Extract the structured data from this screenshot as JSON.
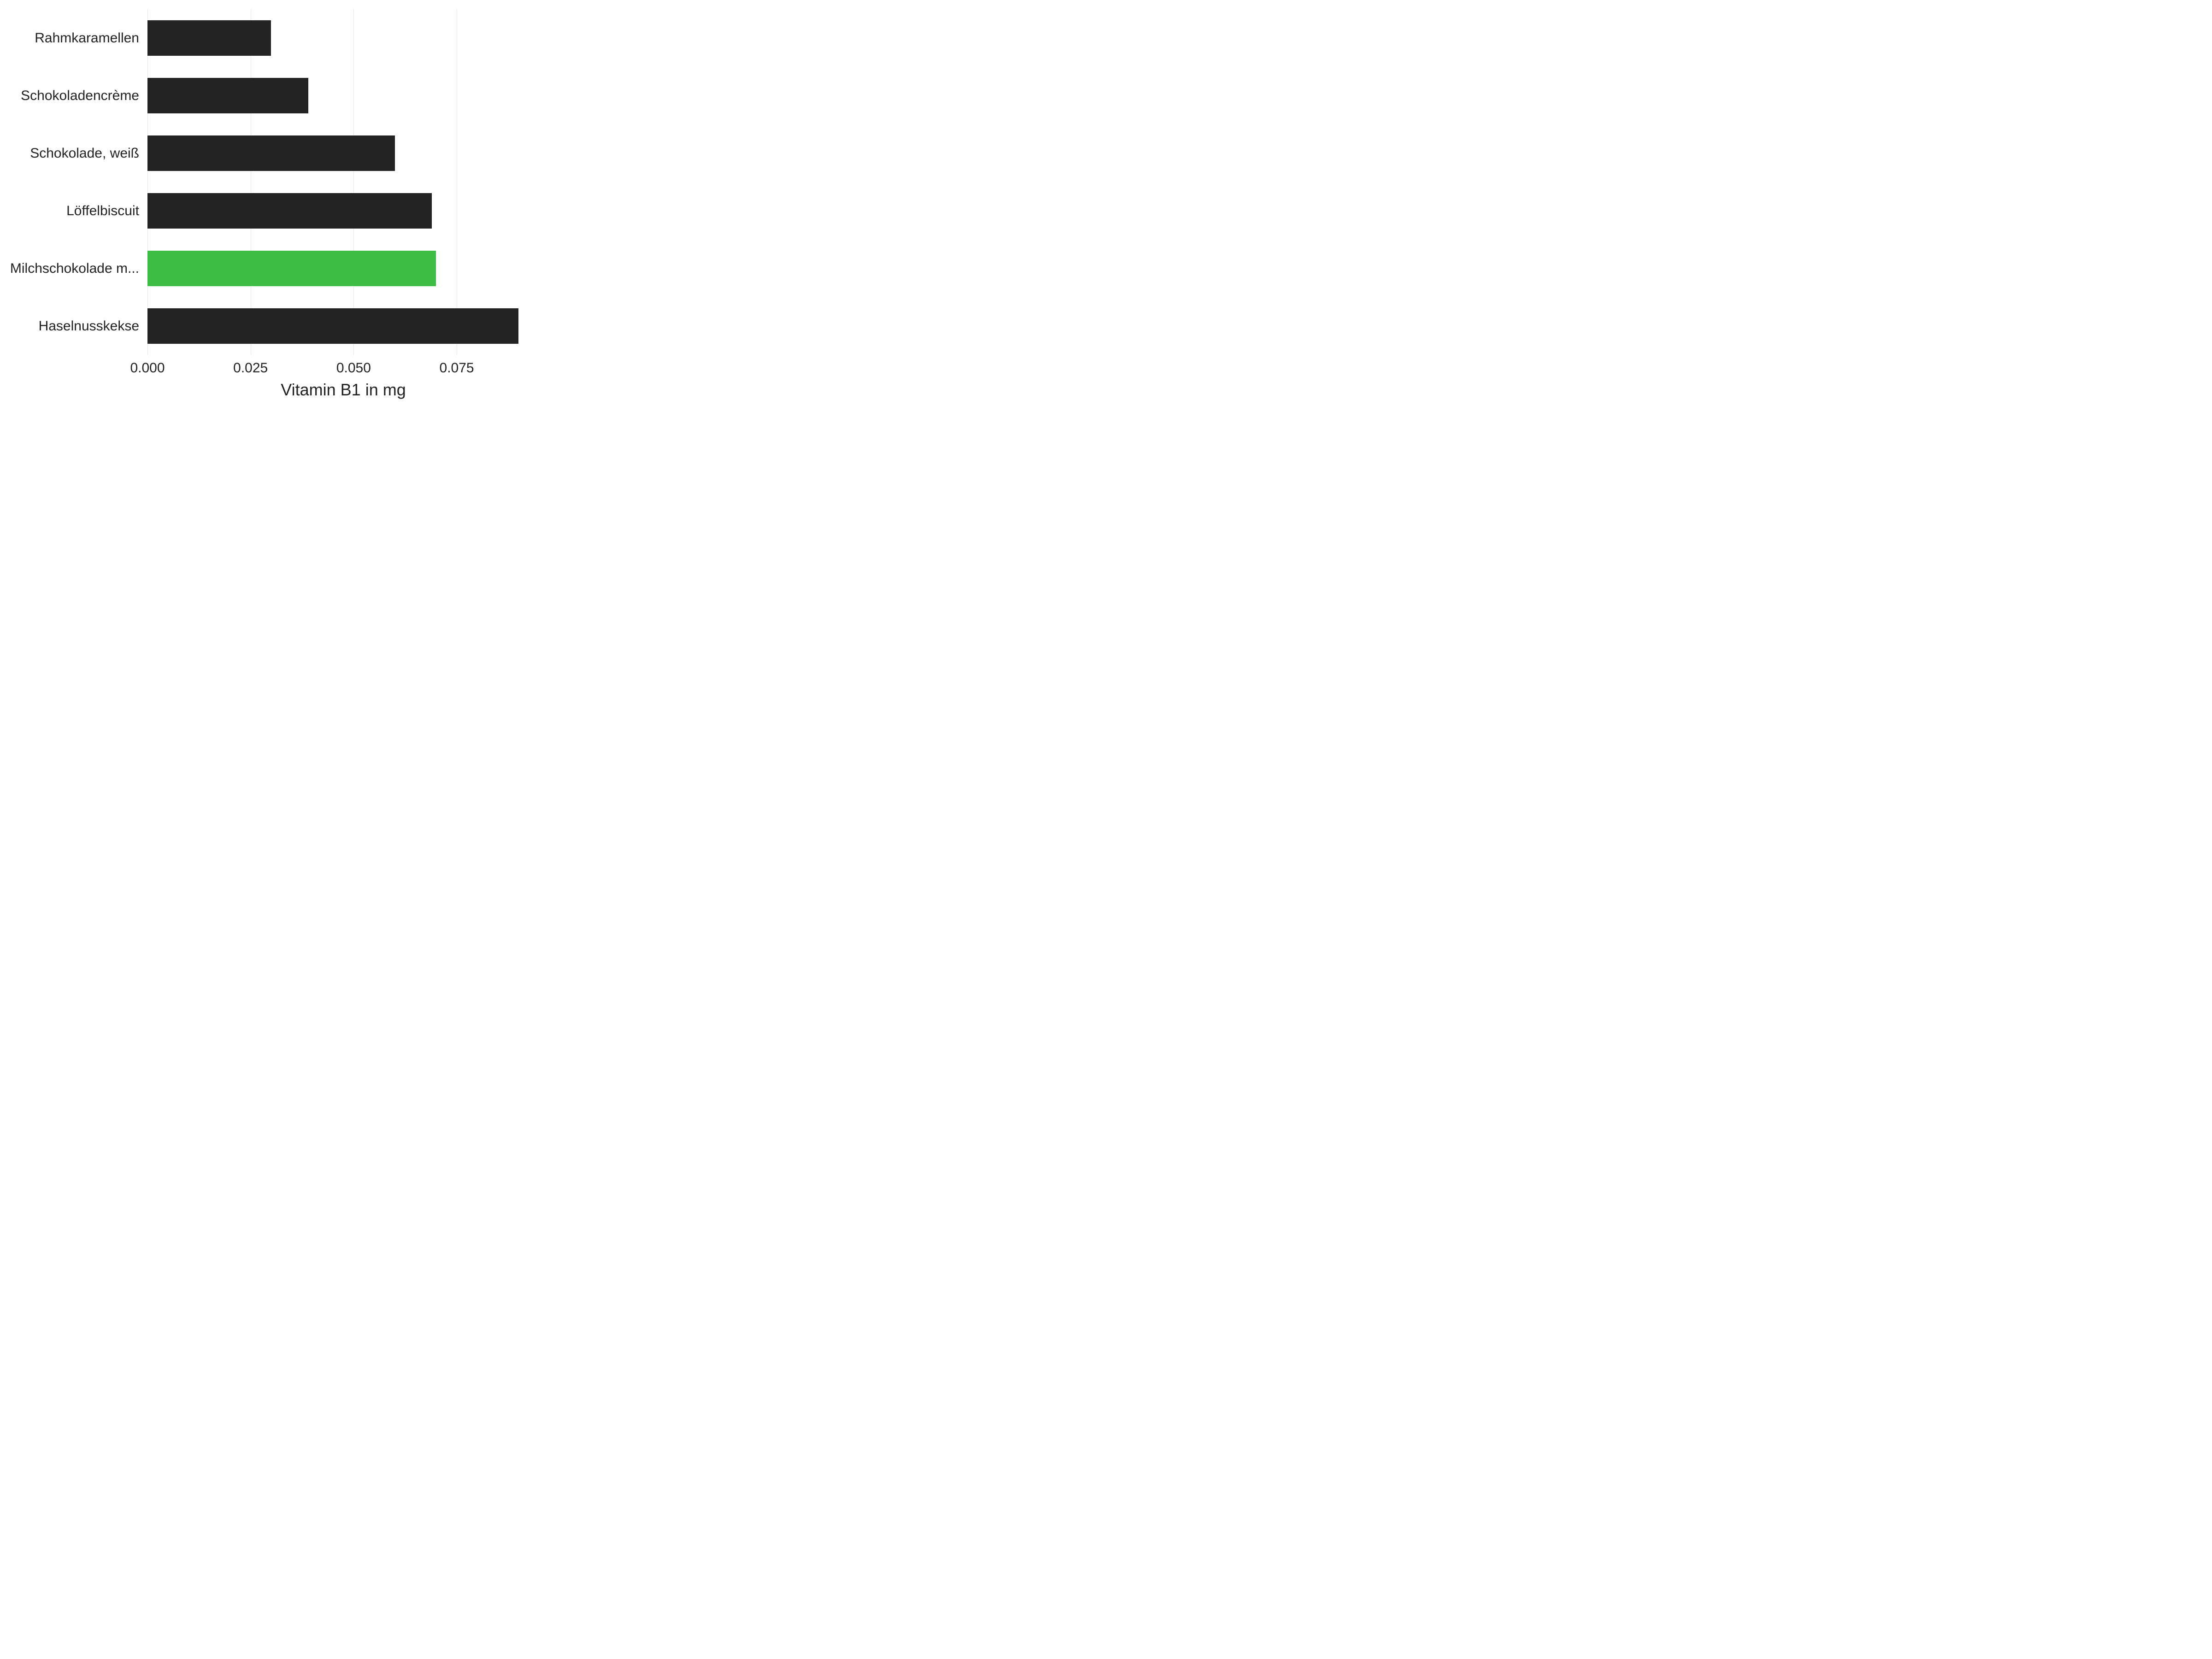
{
  "chart": {
    "type": "bar-horizontal",
    "x_axis_title": "Vitamin B1 in mg",
    "x_ticks": [
      0.0,
      0.025,
      0.05,
      0.075
    ],
    "x_tick_labels": [
      "0.000",
      "0.025",
      "0.050",
      "0.075"
    ],
    "x_max": 0.095,
    "categories": [
      "Rahmkaramellen",
      "Schokoladencrème",
      "Schokolade, weiß",
      "Löffelbiscuit",
      "Milchschokolade m...",
      "Haselnusskekse"
    ],
    "values": [
      0.03,
      0.039,
      0.06,
      0.069,
      0.07,
      0.09
    ],
    "bar_colors": [
      "#232323",
      "#232323",
      "#232323",
      "#232323",
      "#3ebd44",
      "#232323"
    ],
    "background_color": "#ffffff",
    "grid_color": "#e5e5e5",
    "bar_height_ratio": 0.62,
    "label_fontsize": 30,
    "axis_title_fontsize": 36
  }
}
